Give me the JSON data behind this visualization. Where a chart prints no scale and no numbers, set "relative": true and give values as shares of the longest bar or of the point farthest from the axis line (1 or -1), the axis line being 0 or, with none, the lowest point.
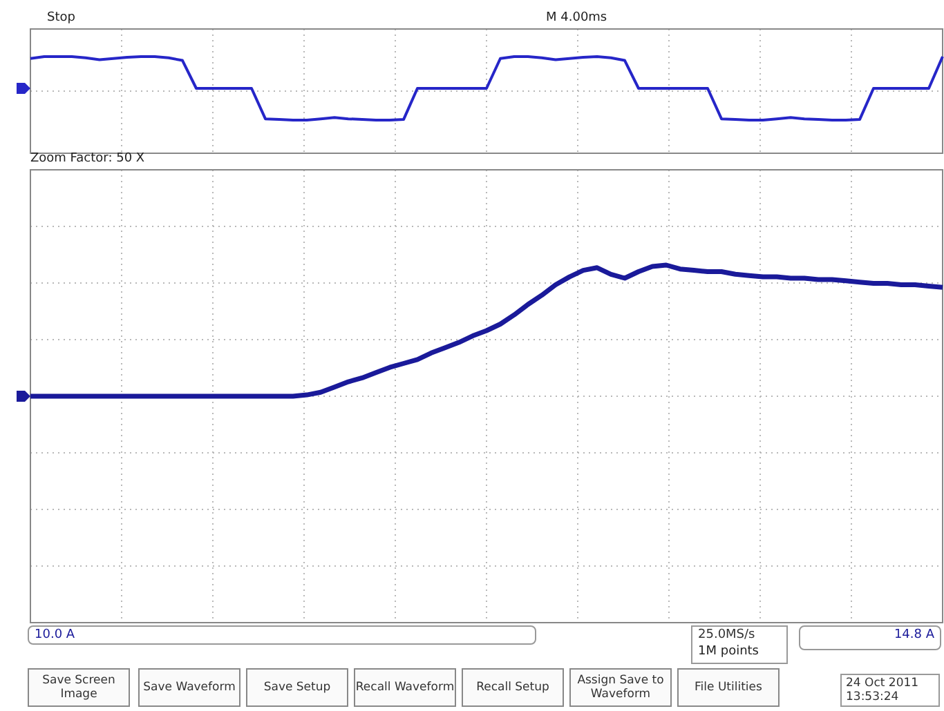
{
  "chart_data": [
    {
      "type": "line",
      "title": "Stop",
      "relative": true,
      "grid": true,
      "legend": false,
      "marker": "none",
      "line_style": "solid",
      "annotations": [
        "M 4.00ms"
      ],
      "categories": [
        null,
        null,
        null,
        null,
        null,
        null,
        null,
        null,
        null,
        null,
        null,
        null,
        null,
        null,
        null,
        null,
        null,
        null,
        null,
        null,
        null,
        null,
        null,
        null,
        null,
        null,
        null,
        null,
        null,
        null,
        null,
        null,
        null,
        null,
        null,
        null,
        null,
        null,
        null,
        null,
        null,
        null,
        null,
        null,
        null,
        null,
        null,
        null,
        null,
        null,
        null,
        null,
        null,
        null,
        null,
        null,
        null,
        null,
        null,
        null,
        null,
        null,
        null,
        null,
        null,
        null,
        null
      ],
      "series": [
        {
          "color": "#2626c8",
          "values": [
            0.94,
            1,
            1,
            1,
            0.96,
            0.9,
            0.94,
            0.98,
            1,
            1,
            0.96,
            0.88,
            0,
            0,
            0,
            0,
            0,
            -0.96,
            -0.98,
            -1,
            -1,
            -0.96,
            -0.92,
            -0.96,
            -0.98,
            -1,
            -1,
            -0.98,
            0,
            0,
            0,
            0,
            0,
            0,
            0.94,
            1,
            1,
            0.96,
            0.9,
            0.94,
            0.98,
            1,
            0.96,
            0.88,
            0,
            0,
            0,
            0,
            0,
            0,
            -0.96,
            -0.98,
            -1,
            -1,
            -0.96,
            -0.92,
            -0.96,
            -0.98,
            -1,
            -1,
            -0.98,
            0,
            0,
            0,
            0,
            0,
            1
          ]
        }
      ]
    },
    {
      "type": "line",
      "title": "Zoom Factor: 50 X",
      "relative": true,
      "grid": true,
      "legend": false,
      "marker": "none",
      "line_style": "solid",
      "annotations": [
        "10.0 A",
        "25.0MS/s",
        "1M points",
        "14.8 A",
        "Save Screen Image",
        "Save Waveform",
        "Save Setup",
        "Recall Waveform",
        "Recall Setup",
        "Assign Save to Waveform",
        "File Utilities",
        "24 Oct 2011 13:53:24"
      ],
      "categories": [
        null,
        null,
        null,
        null,
        null,
        null,
        null,
        null,
        null,
        null,
        null,
        null,
        null,
        null,
        null,
        null,
        null,
        null,
        null,
        null,
        null,
        null,
        null,
        null,
        null,
        null,
        null,
        null,
        null,
        null,
        null,
        null,
        null,
        null,
        null,
        null,
        null,
        null,
        null,
        null,
        null,
        null,
        null,
        null,
        null,
        null,
        null,
        null,
        null,
        null,
        null,
        null,
        null,
        null,
        null,
        null,
        null,
        null,
        null,
        null,
        null,
        null,
        null,
        null,
        null,
        null,
        null
      ],
      "series": [
        {
          "color": "#1a1a9a",
          "values": [
            0,
            0,
            0,
            0,
            0,
            0,
            0,
            0,
            0,
            0,
            0,
            0,
            0,
            0,
            0,
            0,
            0,
            0,
            0,
            0,
            0.01,
            0.03,
            0.07,
            0.11,
            0.14,
            0.18,
            0.22,
            0.25,
            0.28,
            0.33,
            0.37,
            0.41,
            0.46,
            0.5,
            0.55,
            0.62,
            0.7,
            0.77,
            0.85,
            0.91,
            0.96,
            0.98,
            0.93,
            0.9,
            0.95,
            0.99,
            1,
            0.97,
            0.96,
            0.95,
            0.95,
            0.93,
            0.92,
            0.91,
            0.91,
            0.9,
            0.9,
            0.89,
            0.89,
            0.88,
            0.87,
            0.86,
            0.86,
            0.85,
            0.85,
            0.84,
            0.83
          ]
        }
      ]
    }
  ]
}
